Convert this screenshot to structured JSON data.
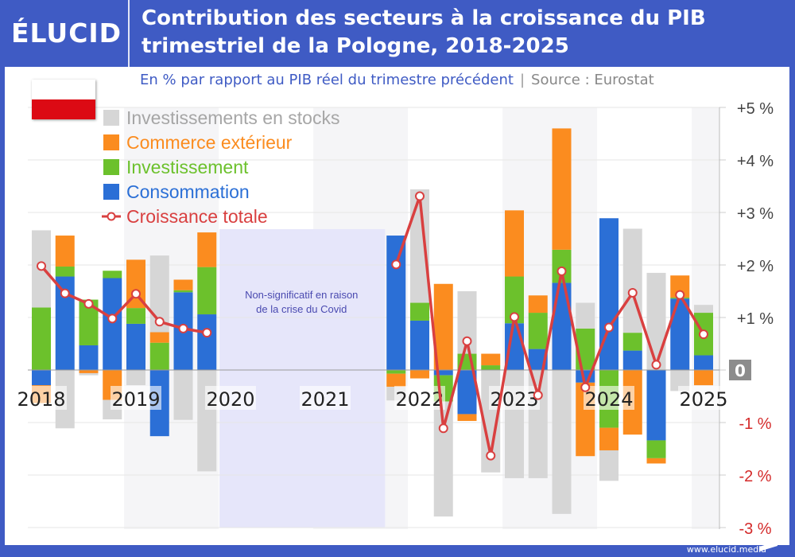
{
  "header": {
    "logo": "ÉLUCID",
    "title_line1": "Contribution des secteurs à la croissance du PIB",
    "title_line2": "trimestriel de la Pologne, 2018-2025",
    "subtitle": "En % par rapport au PIB réel du trimestre précédent",
    "separator": "|",
    "source": "Source : Eurostat"
  },
  "footer": {
    "url": "www.elucid.media"
  },
  "flag": "poland-flag",
  "chart_data": {
    "type": "bar",
    "stacked": true,
    "title": "Contribution des secteurs à la croissance du PIB trimestriel de la Pologne, 2018-2025",
    "ylabel": "En % par rapport au PIB réel du trimestre précédent",
    "ylim": [
      -3,
      5
    ],
    "y_ticks": [
      "+5 %",
      "+4 %",
      "+3 %",
      "+2 %",
      "+1 %",
      "0",
      "-1 %",
      "-2 %",
      "-3 %"
    ],
    "y_tick_values": [
      5,
      4,
      3,
      2,
      1,
      0,
      -1,
      -2,
      -3
    ],
    "y_axis_position": "right",
    "grid": true,
    "legend_position": "top-left",
    "x_year_labels": [
      "2018",
      "2019",
      "2020",
      "2021",
      "2022",
      "2023",
      "2024",
      "2025"
    ],
    "categories": [
      "2018Q1",
      "2018Q2",
      "2018Q3",
      "2018Q4",
      "2019Q1",
      "2019Q2",
      "2019Q3",
      "2019Q4",
      "2020Q1",
      "2020Q2",
      "2020Q3",
      "2020Q4",
      "2021Q1",
      "2021Q2",
      "2021Q3",
      "2021Q4",
      "2022Q1",
      "2022Q2",
      "2022Q3",
      "2022Q4",
      "2023Q1",
      "2023Q2",
      "2023Q3",
      "2023Q4",
      "2024Q1",
      "2024Q2",
      "2024Q3",
      "2024Q4",
      "2025Q1"
    ],
    "annotation": {
      "line1": "Non-significatif en raison",
      "line2": "de la crise du Covid",
      "from": "2020Q1",
      "to": "2021Q3"
    },
    "series": [
      {
        "name": "Consommation",
        "type": "bar",
        "color": "#2b6fd6",
        "values": [
          -0.29,
          1.78,
          0.47,
          1.75,
          0.88,
          -1.26,
          1.48,
          1.06,
          null,
          null,
          null,
          null,
          null,
          null,
          null,
          2.56,
          0.94,
          -0.1,
          -0.84,
          0.0,
          0.89,
          0.4,
          1.66,
          -0.24,
          2.89,
          0.37,
          -1.34,
          1.36,
          0.28
        ]
      },
      {
        "name": "Investissement",
        "type": "bar",
        "color": "#6cc12c",
        "values": [
          1.19,
          0.19,
          0.87,
          0.14,
          0.3,
          0.52,
          0.04,
          0.9,
          null,
          null,
          null,
          null,
          null,
          null,
          null,
          -0.07,
          0.34,
          -0.5,
          0.31,
          0.09,
          0.89,
          0.69,
          0.63,
          0.79,
          -1.1,
          0.34,
          -0.34,
          0.02,
          0.81
        ]
      },
      {
        "name": "Commerce extérieur",
        "type": "bar",
        "color": "#fb8c1f",
        "values": [
          -0.34,
          0.59,
          -0.06,
          -0.57,
          0.92,
          0.2,
          0.2,
          0.66,
          null,
          null,
          null,
          null,
          null,
          null,
          null,
          -0.25,
          -0.16,
          1.64,
          -0.13,
          0.22,
          1.26,
          0.33,
          2.31,
          -1.4,
          -0.43,
          -1.23,
          -0.1,
          0.42,
          -0.29
        ]
      },
      {
        "name": "Investissements en stocks",
        "type": "bar",
        "color": "#d6d6d6",
        "values": [
          1.47,
          -1.11,
          -0.04,
          -0.37,
          -0.29,
          1.46,
          -0.95,
          -1.93,
          null,
          null,
          null,
          null,
          null,
          null,
          null,
          -0.26,
          2.16,
          -2.19,
          1.19,
          -1.95,
          -2.06,
          -2.06,
          -2.74,
          0.49,
          -0.58,
          1.98,
          1.85,
          -0.4,
          0.15
        ]
      },
      {
        "name": "Croissance totale",
        "type": "line",
        "color": "#d94040",
        "values": [
          1.98,
          1.46,
          1.26,
          0.98,
          1.45,
          0.92,
          0.79,
          0.71,
          null,
          null,
          null,
          null,
          null,
          null,
          null,
          2.01,
          3.31,
          -1.11,
          0.55,
          -1.63,
          1.01,
          -0.48,
          1.88,
          -0.33,
          0.81,
          1.47,
          0.1,
          1.43,
          0.68
        ]
      }
    ],
    "legend_order": [
      "Investissements en stocks",
      "Commerce extérieur",
      "Investissement",
      "Consommation",
      "Croissance totale"
    ]
  }
}
